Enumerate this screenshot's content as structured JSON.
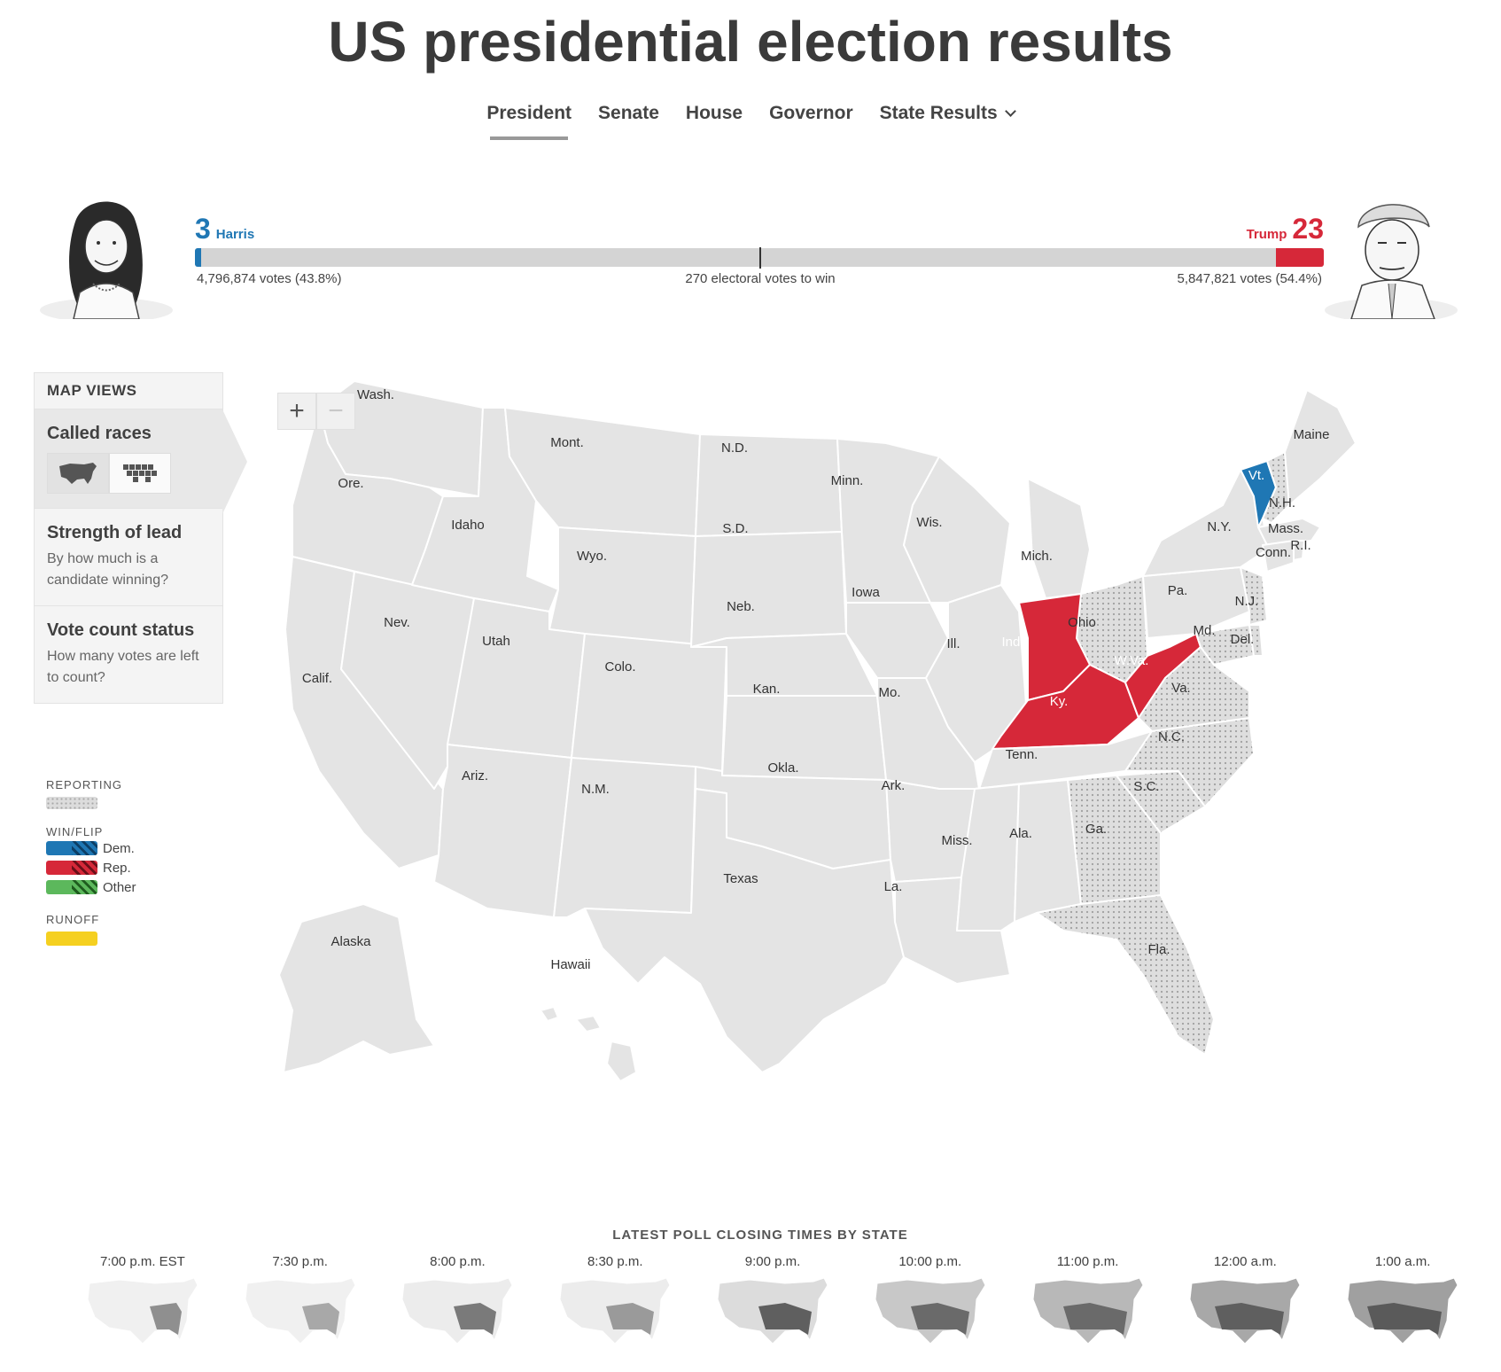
{
  "page_title": "US presidential election results",
  "nav": [
    {
      "label": "President"
    },
    {
      "label": "Senate"
    },
    {
      "label": "House"
    },
    {
      "label": "Governor"
    },
    {
      "label": "State Results"
    }
  ],
  "harris": {
    "ev": "3",
    "name": "Harris",
    "votes": "4,796,874 votes (43.8%)",
    "color": "#1f77b4",
    "ev_share": 0.0056
  },
  "trump": {
    "ev": "23",
    "name": "Trump",
    "votes": "5,847,821 votes (54.4%)",
    "color": "#d62839",
    "ev_share": 0.0427
  },
  "to_win": "270 electoral votes to win",
  "map_views": {
    "header": "MAP VIEWS",
    "called": {
      "title": "Called races"
    },
    "strength": {
      "title": "Strength of lead",
      "desc": "By how much is a candidate winning?"
    },
    "count": {
      "title": "Vote count status",
      "desc": "How many votes are left to count?"
    }
  },
  "legend": {
    "reporting": "REPORTING",
    "winflip": "WIN/FLIP",
    "dem": "Dem.",
    "rep": "Rep.",
    "other": "Other",
    "runoff": "RUNOFF"
  },
  "zoom": {
    "in": "+",
    "out": "−"
  },
  "states": {
    "wash": "Wash.",
    "ore": "Ore.",
    "calif": "Calif.",
    "nev": "Nev.",
    "idaho": "Idaho",
    "mont": "Mont.",
    "wyo": "Wyo.",
    "utah": "Utah",
    "colo": "Colo.",
    "ariz": "Ariz.",
    "nm": "N.M.",
    "nd": "N.D.",
    "sd": "S.D.",
    "neb": "Neb.",
    "kan": "Kan.",
    "okla": "Okla.",
    "texas": "Texas",
    "minn": "Minn.",
    "iowa": "Iowa",
    "mo": "Mo.",
    "ark": "Ark.",
    "la": "La.",
    "wis": "Wis.",
    "ill": "Ill.",
    "mich": "Mich.",
    "ind": "Ind.",
    "ohio": "Ohio",
    "ky": "Ky.",
    "tenn": "Tenn.",
    "miss": "Miss.",
    "ala": "Ala.",
    "ga": "Ga.",
    "fla": "Fla.",
    "sc": "S.C.",
    "nc": "N.C.",
    "va": "Va.",
    "wva": "W.Va.",
    "md": "Md.",
    "del": "Del.",
    "nj": "N.J.",
    "pa": "Pa.",
    "ny": "N.Y.",
    "vt": "Vt.",
    "nh": "N.H.",
    "maine": "Maine",
    "mass": "Mass.",
    "ri": "R.I.",
    "conn": "Conn.",
    "alaska": "Alaska",
    "hawaii": "Hawaii"
  },
  "poll_closing": {
    "title": "LATEST POLL CLOSING TIMES BY STATE",
    "times": [
      "7:00 p.m. EST",
      "7:30 p.m.",
      "8:00 p.m.",
      "8:30 p.m.",
      "9:00 p.m.",
      "10:00 p.m.",
      "11:00 p.m.",
      "12:00 a.m.",
      "1:00 a.m."
    ]
  },
  "colors": {
    "dem": "#1f77b4",
    "rep": "#d62839",
    "state_fill": "#e4e4e4",
    "runoff": "#f5d020",
    "other": "#5cb85c"
  }
}
